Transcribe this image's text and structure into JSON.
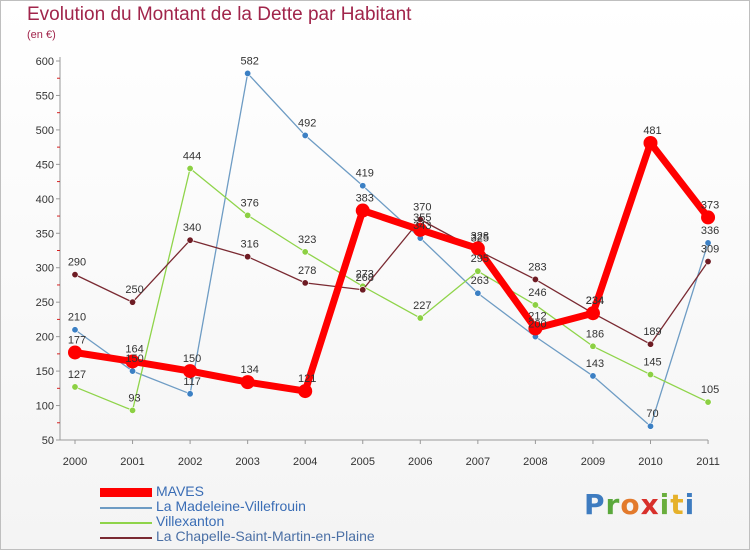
{
  "title": "Evolution du Montant de la Dette par Habitant",
  "subtitle": "(en €)",
  "logo_text": "Proxiti",
  "chart_data": {
    "type": "line",
    "title": "Evolution du Montant de la Dette par Habitant",
    "subtitle": "(en €)",
    "xlabel": "",
    "ylabel": "",
    "ylim": [
      50,
      600
    ],
    "yticks": [
      50,
      100,
      150,
      200,
      250,
      300,
      350,
      400,
      450,
      500,
      550,
      600
    ],
    "grid": false,
    "legend_position": "bottom-left",
    "categories": [
      "2000",
      "2001",
      "2002",
      "2003",
      "2004",
      "2005",
      "2006",
      "2007",
      "2008",
      "2009",
      "2010",
      "2011"
    ],
    "series": [
      {
        "name": "La Madeleine-Villefrouin",
        "color": "#6e9cc4",
        "marker_color": "#3c80c4",
        "values": [
          210,
          150,
          117,
          582,
          492,
          419,
          343,
          263,
          200,
          143,
          70,
          336
        ]
      },
      {
        "name": "Villexanton",
        "color": "#8fd44a",
        "marker_color": "#8cd043",
        "values": [
          127,
          93,
          444,
          376,
          323,
          273,
          227,
          295,
          246,
          186,
          145,
          105
        ]
      },
      {
        "name": "La Chapelle-Saint-Martin-en-Plaine",
        "color": "#7a2a32",
        "marker_color": "#6e1c24",
        "values": [
          290,
          250,
          340,
          316,
          278,
          268,
          370,
          325,
          283,
          234,
          189,
          309
        ]
      },
      {
        "name": "MAVES",
        "color": "#ff0000",
        "marker_color": "#ff0000",
        "values": [
          177,
          164,
          150,
          134,
          121,
          383,
          355,
          328,
          212,
          234,
          481,
          373
        ]
      }
    ],
    "legend_order": [
      "MAVES",
      "La Madeleine-Villefrouin",
      "Villexanton",
      "La Chapelle-Saint-Martin-en-Plaine"
    ]
  }
}
